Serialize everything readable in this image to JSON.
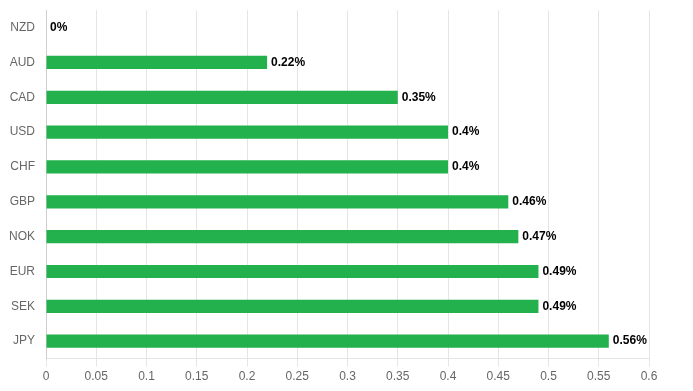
{
  "chart_data": {
    "type": "bar",
    "orientation": "horizontal",
    "categories": [
      "NZD",
      "AUD",
      "CAD",
      "USD",
      "CHF",
      "GBP",
      "NOK",
      "EUR",
      "SEK",
      "JPY"
    ],
    "values": [
      0.0,
      0.22,
      0.35,
      0.4,
      0.4,
      0.46,
      0.47,
      0.49,
      0.49,
      0.56
    ],
    "value_labels": [
      "0%",
      "0.22%",
      "0.35%",
      "0.4%",
      "0.4%",
      "0.46%",
      "0.47%",
      "0.49%",
      "0.49%",
      "0.56%"
    ],
    "data_labels": true,
    "color": "#22b14c",
    "xlim": [
      0,
      0.6
    ],
    "xticks": [
      0,
      0.05,
      0.1,
      0.15,
      0.2,
      0.25,
      0.3,
      0.35,
      0.4,
      0.45,
      0.5,
      0.55,
      0.6
    ],
    "grid": true
  }
}
